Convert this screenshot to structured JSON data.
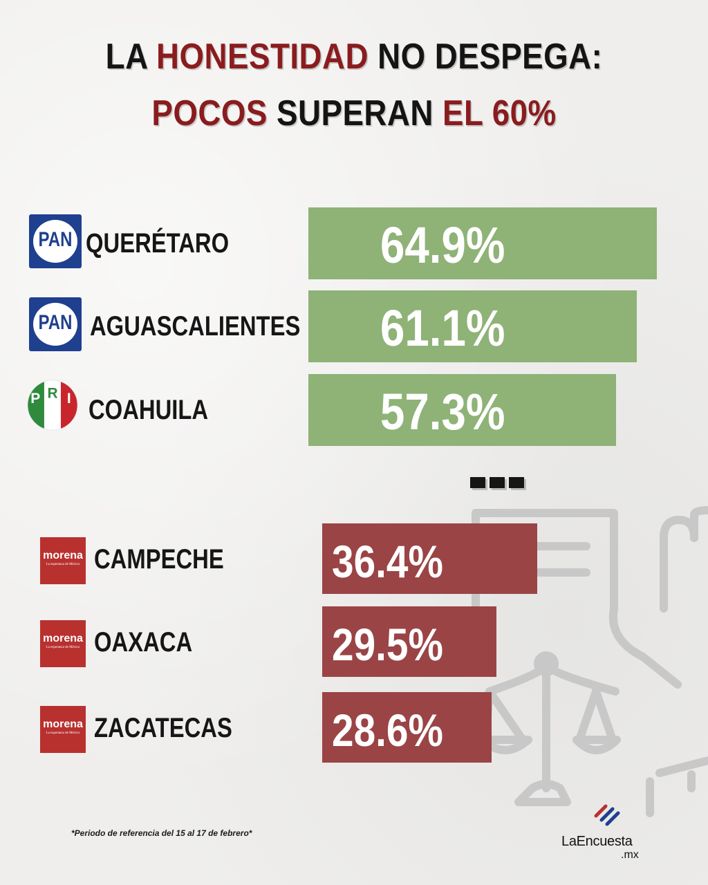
{
  "title": {
    "line1": [
      {
        "text": "LA ",
        "style": "dark"
      },
      {
        "text": "HONESTIDAD",
        "style": "red"
      },
      {
        "text": " NO DESPEGA:",
        "style": "dark"
      }
    ],
    "line2": [
      {
        "text": "POCOS",
        "style": "red"
      },
      {
        "text": " SUPERAN ",
        "style": "dark"
      },
      {
        "text": "EL 60%",
        "style": "red"
      }
    ]
  },
  "colors": {
    "title_dark": "#141414",
    "title_red": "#8a1c1e",
    "bar_green": "#8fb277",
    "bar_red": "#9a4446",
    "pan_blue": "#1f3f8f",
    "morena_red": "#b8312f"
  },
  "chart_data": {
    "type": "bar",
    "orientation": "horizontal",
    "value_unit": "%",
    "groups": [
      {
        "tone": "green",
        "rows": [
          {
            "category": "QUERÉTARO",
            "party_logo": "pan-logo",
            "value": 64.9,
            "label": "64.9%"
          },
          {
            "category": "AGUASCALIENTES",
            "party_logo": "pan-logo",
            "value": 61.1,
            "label": "61.1%"
          },
          {
            "category": "COAHUILA",
            "party_logo": "pri-logo",
            "value": 57.3,
            "label": "57.3%"
          }
        ]
      },
      {
        "tone": "red",
        "rows": [
          {
            "category": "CAMPECHE",
            "party_logo": "morena-logo",
            "value": 36.4,
            "label": "36.4%"
          },
          {
            "category": "OAXACA",
            "party_logo": "morena-logo",
            "value": 29.5,
            "label": "29.5%"
          },
          {
            "category": "ZACATECAS",
            "party_logo": "morena-logo",
            "value": 28.6,
            "label": "28.6%"
          }
        ]
      }
    ]
  },
  "logos": {
    "pan_text": "PAN",
    "pri_letters": [
      "P",
      "R",
      "I"
    ],
    "morena_name": "morena",
    "morena_sub": "La esperanza de México"
  },
  "decoration": {
    "background_illustration": "hand-and-scales-icon"
  },
  "footnote": "*Periodo de referencia del 15 al 17 de febrero*",
  "brand": {
    "name": "LaEncuesta",
    "domain": ".mx"
  }
}
